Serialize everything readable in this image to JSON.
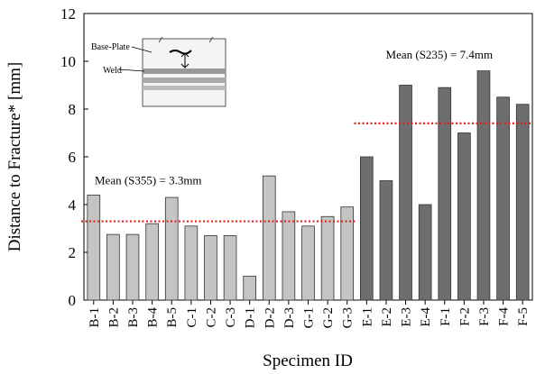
{
  "chart_data": {
    "type": "bar",
    "ylabel": "Distance to Fracture* [mm]",
    "xlabel": "Specimen ID",
    "ylim": [
      0,
      12
    ],
    "yticks": [
      0,
      2,
      4,
      6,
      8,
      10,
      12
    ],
    "mean_line_color": "#e0201a",
    "groups": [
      {
        "annotation": "Mean (S355) = 3.3mm",
        "mean": 3.3,
        "color": "#c4c4c4",
        "categories": [
          "B-1",
          "B-2",
          "B-3",
          "B-4",
          "B-5",
          "C-1",
          "C-2",
          "C-3",
          "D-1",
          "D-2",
          "D-3",
          "G-1",
          "G-2",
          "G-3"
        ],
        "values": [
          4.4,
          2.75,
          2.75,
          3.2,
          4.3,
          3.1,
          2.7,
          2.7,
          1.0,
          5.2,
          3.7,
          3.1,
          3.5,
          3.9
        ]
      },
      {
        "annotation": "Mean (S235) = 7.4mm",
        "mean": 7.4,
        "color": "#6e6e6e",
        "categories": [
          "E-1",
          "E-2",
          "E-3",
          "E-4",
          "F-1",
          "F-2",
          "F-3",
          "F-4",
          "F-5"
        ],
        "values": [
          6.0,
          5.0,
          9.0,
          4.0,
          8.9,
          7.0,
          9.6,
          8.5,
          8.2
        ]
      }
    ],
    "inset_labels": [
      "Base-Plate",
      "Weld"
    ]
  }
}
